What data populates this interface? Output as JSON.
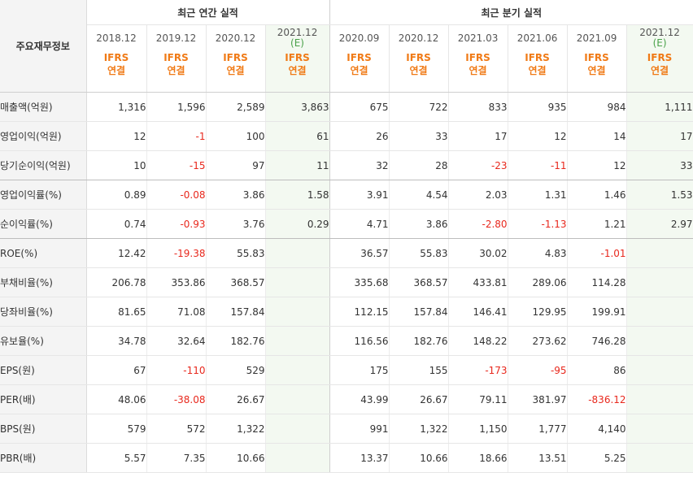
{
  "table": {
    "label_header": "주요재무정보",
    "groups": [
      "최근 연간 실적",
      "최근 분기 실적"
    ],
    "periods": [
      {
        "date": "2018.12",
        "est": ""
      },
      {
        "date": "2019.12",
        "est": ""
      },
      {
        "date": "2020.12",
        "est": ""
      },
      {
        "date": "2021.12",
        "est": "(E)"
      },
      {
        "date": "2020.09",
        "est": ""
      },
      {
        "date": "2020.12",
        "est": ""
      },
      {
        "date": "2021.03",
        "est": ""
      },
      {
        "date": "2021.06",
        "est": ""
      },
      {
        "date": "2021.09",
        "est": ""
      },
      {
        "date": "2021.12",
        "est": "(E)"
      }
    ],
    "basis_line1": "IFRS",
    "basis_line2": "연결",
    "rows": [
      {
        "label": "매출액(억원)",
        "values": [
          "1,316",
          "1,596",
          "2,589",
          "3,863",
          "675",
          "722",
          "833",
          "935",
          "984",
          "1,111"
        ]
      },
      {
        "label": "영업이익(억원)",
        "values": [
          "12",
          "-1",
          "100",
          "61",
          "26",
          "33",
          "17",
          "12",
          "14",
          "17"
        ]
      },
      {
        "label": "당기순이익(억원)",
        "values": [
          "10",
          "-15",
          "97",
          "11",
          "32",
          "28",
          "-23",
          "-11",
          "12",
          "33"
        ]
      },
      {
        "label": "영업이익률(%)",
        "values": [
          "0.89",
          "-0.08",
          "3.86",
          "1.58",
          "3.91",
          "4.54",
          "2.03",
          "1.31",
          "1.46",
          "1.53"
        ]
      },
      {
        "label": "순이익률(%)",
        "values": [
          "0.74",
          "-0.93",
          "3.76",
          "0.29",
          "4.71",
          "3.86",
          "-2.80",
          "-1.13",
          "1.21",
          "2.97"
        ]
      },
      {
        "label": "ROE(%)",
        "values": [
          "12.42",
          "-19.38",
          "55.83",
          "",
          "36.57",
          "55.83",
          "30.02",
          "4.83",
          "-1.01",
          ""
        ]
      },
      {
        "label": "부채비율(%)",
        "values": [
          "206.78",
          "353.86",
          "368.57",
          "",
          "335.68",
          "368.57",
          "433.81",
          "289.06",
          "114.28",
          ""
        ]
      },
      {
        "label": "당좌비율(%)",
        "values": [
          "81.65",
          "71.08",
          "157.84",
          "",
          "112.15",
          "157.84",
          "146.41",
          "129.95",
          "199.91",
          ""
        ]
      },
      {
        "label": "유보율(%)",
        "values": [
          "34.78",
          "32.64",
          "182.76",
          "",
          "116.56",
          "182.76",
          "148.22",
          "273.62",
          "746.28",
          ""
        ]
      },
      {
        "label": "EPS(원)",
        "values": [
          "67",
          "-110",
          "529",
          "",
          "175",
          "155",
          "-173",
          "-95",
          "86",
          ""
        ]
      },
      {
        "label": "PER(배)",
        "values": [
          "48.06",
          "-38.08",
          "26.67",
          "",
          "43.99",
          "26.67",
          "79.11",
          "381.97",
          "-836.12",
          ""
        ]
      },
      {
        "label": "BPS(원)",
        "values": [
          "579",
          "572",
          "1,322",
          "",
          "991",
          "1,322",
          "1,150",
          "1,777",
          "4,140",
          ""
        ]
      },
      {
        "label": "PBR(배)",
        "values": [
          "5.57",
          "7.35",
          "10.66",
          "",
          "13.37",
          "10.66",
          "18.66",
          "13.51",
          "5.25",
          ""
        ]
      }
    ],
    "negative_color": "#e8281d",
    "ifrs_color": "#f07a16",
    "estimate_color": "#4aa24a",
    "estimate_bg": "#f3f9f1"
  }
}
